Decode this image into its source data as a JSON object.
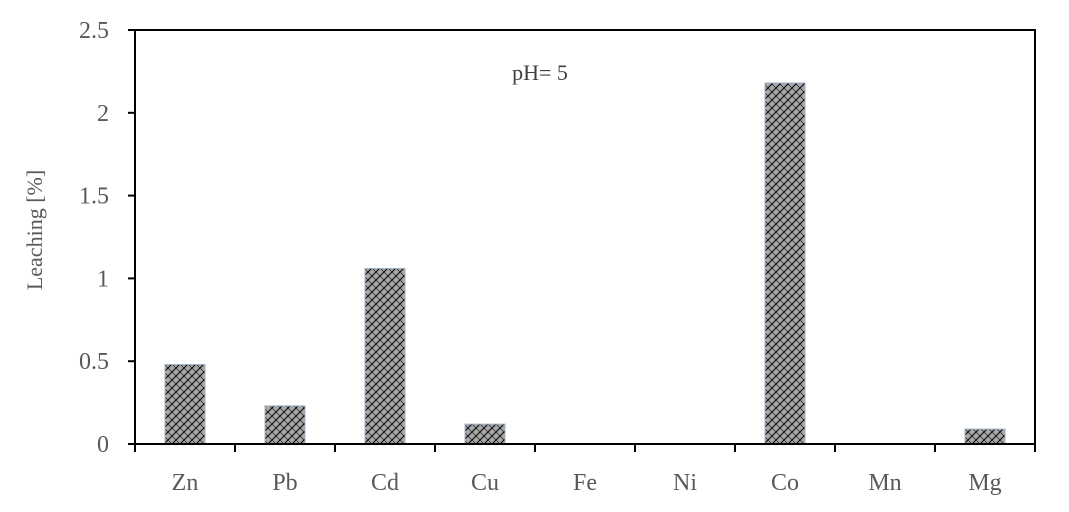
{
  "chart_data": {
    "type": "bar",
    "title": "",
    "xlabel": "",
    "ylabel": "Leaching [%]",
    "annotation": "pH= 5",
    "categories": [
      "Zn",
      "Pb",
      "Cd",
      "Cu",
      "Fe",
      "Ni",
      "Co",
      "Mn",
      "Mg"
    ],
    "values": [
      0.48,
      0.23,
      1.06,
      0.12,
      0,
      0,
      2.18,
      0,
      0.09
    ],
    "ylim": [
      0,
      2.5
    ],
    "yticks": [
      0,
      0.5,
      1,
      1.5,
      2,
      2.5
    ],
    "ytick_labels": [
      "0",
      "0.5",
      "1",
      "1.5",
      "2",
      "2.5"
    ],
    "grid": false,
    "legend": "none",
    "bar_fill": "#a6a6a6",
    "bar_hatch": "#000000",
    "axis_color": "#000000"
  }
}
